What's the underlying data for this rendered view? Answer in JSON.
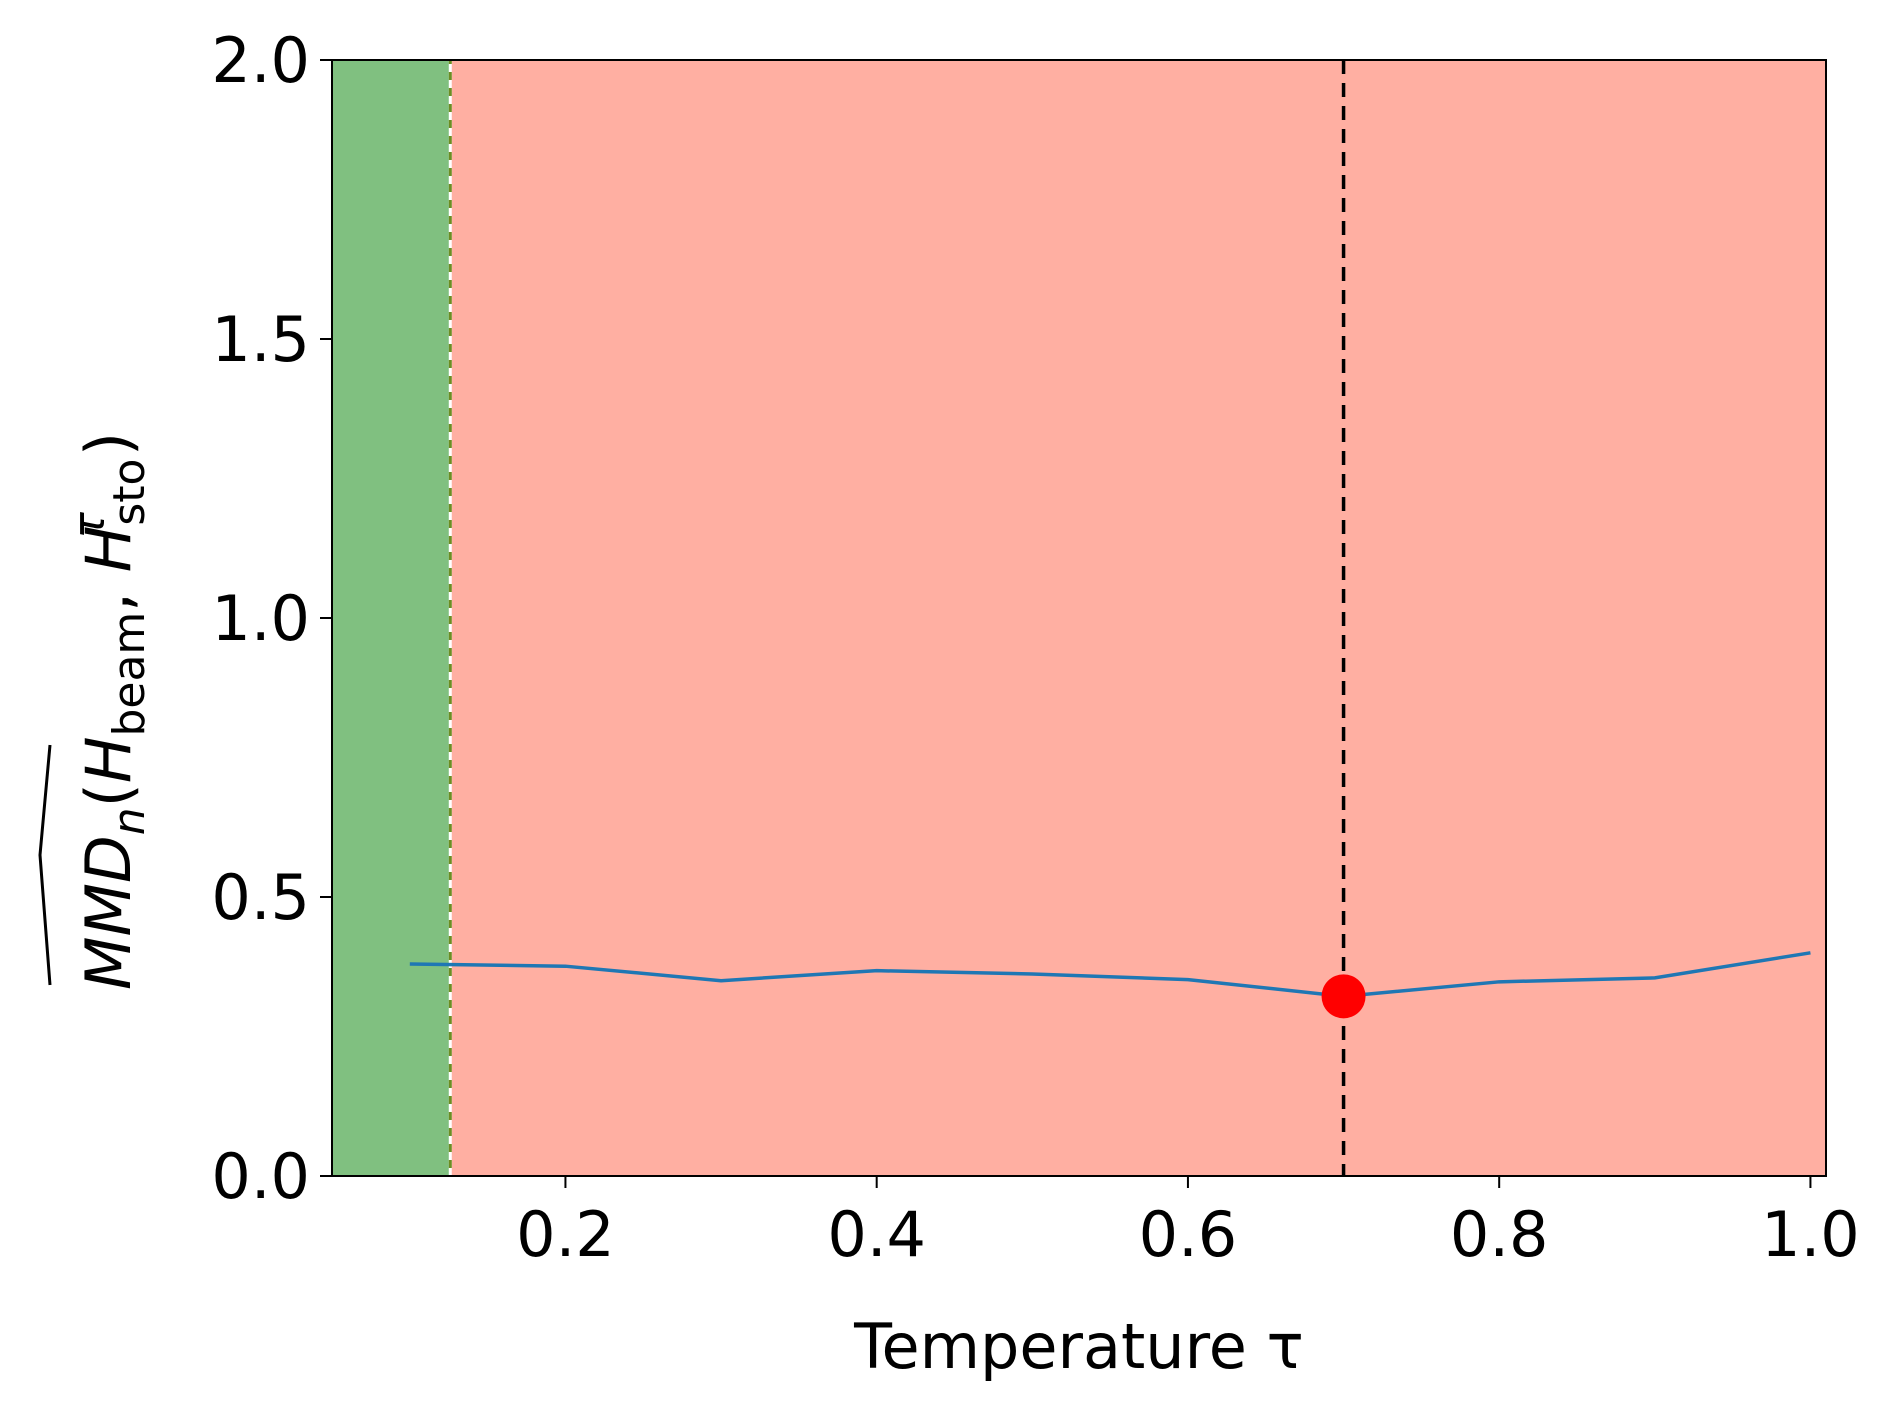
{
  "chart_data": {
    "type": "line",
    "title": "",
    "xlabel": "Temperature τ",
    "ylabel_parts": {
      "mmd": "MMD",
      "n": "n",
      "open": "(",
      "h1": "H",
      "beam": "beam",
      "comma": ", ",
      "h2": "H",
      "sto": "sto",
      "tau": "τ",
      "close": ")"
    },
    "xlim": [
      0.05,
      1.01
    ],
    "ylim": [
      0.0,
      2.0
    ],
    "xticks": [
      0.2,
      0.4,
      0.6,
      0.8,
      1.0
    ],
    "xtick_labels": [
      "0.2",
      "0.4",
      "0.6",
      "0.8",
      "1.0"
    ],
    "yticks": [
      0.0,
      0.5,
      1.0,
      1.5,
      2.0
    ],
    "ytick_labels": [
      "0.0",
      "0.5",
      "1.0",
      "1.5",
      "2.0"
    ],
    "grid": false,
    "series": [
      {
        "x": [
          0.1,
          0.2,
          0.3,
          0.4,
          0.5,
          0.6,
          0.7,
          0.8,
          0.9,
          1.0
        ],
        "y": [
          0.38,
          0.376,
          0.35,
          0.368,
          0.362,
          0.352,
          0.322,
          0.348,
          0.355,
          0.4
        ],
        "color": "#1f77b4"
      }
    ],
    "regions": [
      {
        "from": 0.05,
        "to": 0.126,
        "color": "#80c080"
      },
      {
        "from": 0.126,
        "to": 1.01,
        "color": "#ffafa2"
      }
    ],
    "vlines": [
      {
        "x": 0.126,
        "color": "#6b8e23",
        "style": "dashed-dotted"
      },
      {
        "x": 0.7,
        "color": "#000000",
        "style": "dashed"
      }
    ],
    "highlight_point": {
      "x": 0.7,
      "y": 0.322,
      "color": "#ff0000"
    }
  }
}
